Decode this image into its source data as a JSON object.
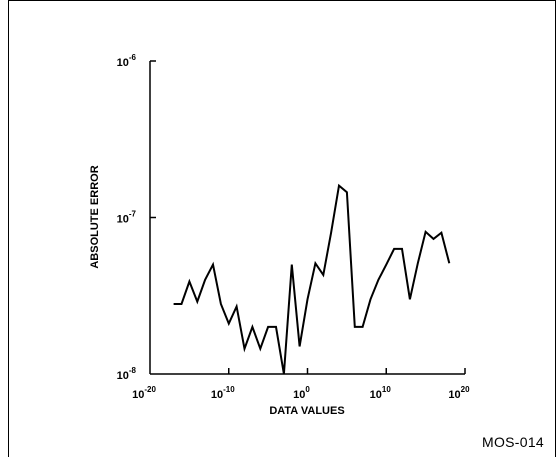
{
  "figure_id": "MOS-014",
  "chart_data": {
    "type": "line",
    "title": "",
    "xlabel": "DATA VALUES",
    "ylabel": "ABSOLUTE ERROR",
    "x_scale": "log",
    "y_scale": "log",
    "xlim": [
      1e-20,
      1e+20
    ],
    "ylim": [
      1e-08,
      1e-06
    ],
    "x_ticks": [
      {
        "base": "10",
        "exp": "-20",
        "value": 1e-20
      },
      {
        "base": "10",
        "exp": "-10",
        "value": 1e-10
      },
      {
        "base": "10",
        "exp": "0",
        "value": 1
      },
      {
        "base": "10",
        "exp": "10",
        "value": 10000000000.0
      },
      {
        "base": "10",
        "exp": "20",
        "value": 1e+20
      }
    ],
    "y_ticks": [
      {
        "base": "10",
        "exp": "-8",
        "value": 1e-08
      },
      {
        "base": "10",
        "exp": "-7",
        "value": 1e-07
      },
      {
        "base": "10",
        "exp": "-6",
        "value": 1e-06
      }
    ],
    "grid": false,
    "series": [
      {
        "x": [
          1e-17,
          1e-16,
          1e-15,
          1e-14,
          1e-13,
          1e-12,
          1e-11,
          1e-10,
          1e-09,
          1e-08,
          1e-07,
          1e-06,
          1e-05,
          0.0001,
          0.001,
          0.01,
          0.1,
          1,
          10,
          100,
          1000,
          10000.0,
          100000.0,
          1000000.0,
          10000000.0,
          100000000.0,
          1000000000.0,
          10000000000.0,
          100000000000.0,
          1000000000000.0,
          10000000000000.0,
          100000000000000.0,
          1000000000000000.0,
          1e+16,
          1e+17,
          1e+18
        ],
        "y": [
          2.8e-08,
          2.8e-08,
          3.9e-08,
          2.9e-08,
          4e-08,
          5e-08,
          2.8e-08,
          2.1e-08,
          2.7e-08,
          1.45e-08,
          2e-08,
          1.45e-08,
          2e-08,
          2e-08,
          1e-08,
          5e-08,
          1.5e-08,
          3e-08,
          5.1e-08,
          4.3e-08,
          8e-08,
          1.6e-07,
          1.45e-07,
          2e-08,
          2e-08,
          3e-08,
          4e-08,
          5e-08,
          6.3e-08,
          6.3e-08,
          3e-08,
          5.1e-08,
          8.1e-08,
          7.3e-08,
          8e-08,
          5.1e-08
        ]
      }
    ]
  }
}
